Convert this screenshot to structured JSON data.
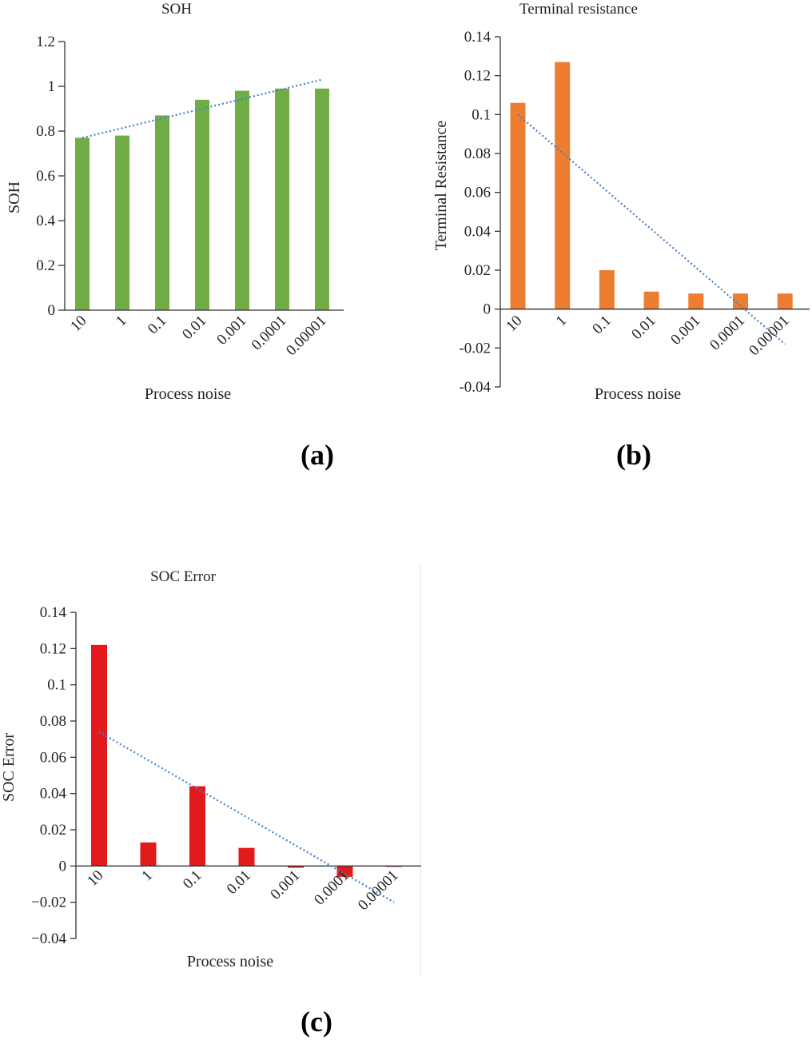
{
  "chart_data": [
    {
      "type": "bar",
      "title": "SOH",
      "xlabel": "Process noise",
      "ylabel": "SOH",
      "categories": [
        "10",
        "1",
        "0.1",
        "0.01",
        "0.001",
        "0.0001",
        "0.00001"
      ],
      "series": [
        {
          "values": [
            0.77,
            0.78,
            0.87,
            0.94,
            0.98,
            0.99,
            0.99
          ]
        }
      ],
      "trendline": {
        "style": "dotted",
        "start": 0.77,
        "end": 1.03
      },
      "ylim": [
        0,
        1.2
      ],
      "yticks": [
        0,
        0.2,
        0.4,
        0.6,
        0.8,
        1,
        1.2
      ],
      "ytick_labels": [
        "0",
        "0.2",
        "0.4",
        "0.6",
        "0.8",
        "1",
        "1.2"
      ],
      "bar_color": "#70ad47",
      "trend_color": "#4a7ec4",
      "panel_label": "(a)",
      "grid": false
    },
    {
      "type": "bar",
      "title": "Terminal resistance",
      "xlabel": "Process noise",
      "ylabel": "Terminal Resistance",
      "categories": [
        "10",
        "1",
        "0.1",
        "0.01",
        "0.001",
        "0.0001",
        "0.00001"
      ],
      "series": [
        {
          "values": [
            0.106,
            0.127,
            0.02,
            0.009,
            0.008,
            0.008,
            0.008
          ]
        }
      ],
      "trendline": {
        "style": "dotted",
        "start": 0.1,
        "end": -0.018
      },
      "ylim": [
        -0.04,
        0.14
      ],
      "yticks": [
        0.14,
        0.12,
        0.1,
        0.08,
        0.06,
        0.04,
        0.02,
        0,
        -0.02,
        -0.04
      ],
      "ytick_labels": [
        "0.14",
        "0.12",
        "0.1",
        "0.08",
        "0.06",
        "0.04",
        "0.02",
        "0",
        "-0.02",
        "-0.04"
      ],
      "bar_color": "#ed7d31",
      "trend_color": "#4a7ec4",
      "panel_label": "(b)",
      "grid": false
    },
    {
      "type": "bar",
      "title": "SOC Error",
      "xlabel": "Process noise",
      "ylabel": "SOC Error",
      "categories": [
        "10",
        "1",
        "0.1",
        "0.01",
        "0.001",
        "0.0001",
        "0.00001"
      ],
      "series": [
        {
          "values": [
            0.122,
            0.013,
            0.044,
            0.01,
            -0.001,
            -0.006,
            -0.0005
          ]
        }
      ],
      "trendline": {
        "style": "dotted",
        "start": 0.074,
        "end": -0.02
      },
      "ylim": [
        -0.04,
        0.14
      ],
      "yticks": [
        0.14,
        0.12,
        0.1,
        0.08,
        0.06,
        0.04,
        0.02,
        0,
        -0.02,
        -0.04
      ],
      "ytick_labels": [
        "0.14",
        "0.12",
        "0.1",
        "0.08",
        "0.06",
        "0.04",
        "0.02",
        "0",
        "−0.02",
        "−0.04"
      ],
      "bar_color": "#e31a1c",
      "trend_color": "#4a7ec4",
      "panel_label": "(c)",
      "grid": false
    }
  ]
}
